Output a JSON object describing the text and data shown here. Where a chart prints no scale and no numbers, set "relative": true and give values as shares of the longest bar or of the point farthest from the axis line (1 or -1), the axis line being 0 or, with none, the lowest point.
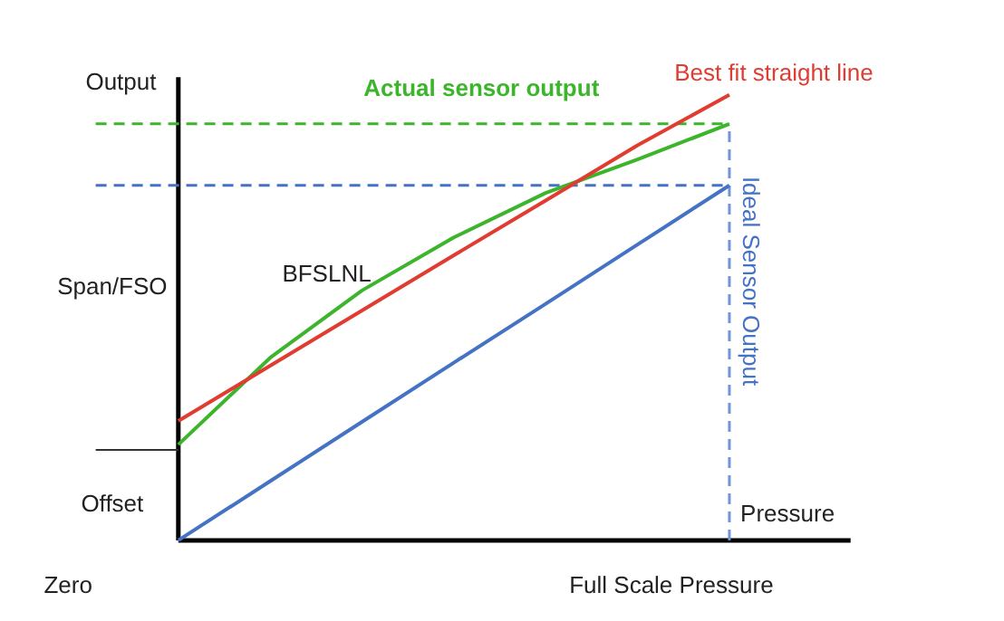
{
  "chart_data": {
    "type": "line",
    "relative": true,
    "ylabel": "Output",
    "xlabel": "Pressure",
    "categories": [
      null,
      null,
      null,
      null,
      null,
      null,
      null
    ],
    "series": [
      {
        "name": "Ideal Sensor Output",
        "color": "#4472c4",
        "values": [
          0,
          0.133,
          0.266,
          0.399,
          0.531,
          0.664,
          0.797
        ]
      },
      {
        "name": "Actual sensor output",
        "color": "#3cb52c",
        "values": [
          0.215,
          0.41,
          0.561,
          0.68,
          0.78,
          0.855,
          0.935
        ]
      },
      {
        "name": "Best fit straight line",
        "color": "#e03c31",
        "values": [
          0.268,
          0.392,
          0.516,
          0.64,
          0.763,
          0.887,
          1.0
        ]
      }
    ],
    "ref_lines": [
      {
        "axis": "y",
        "value": 0.935,
        "color": "#3cb52c",
        "line_style": "dashed"
      },
      {
        "axis": "y",
        "value": 0.797,
        "color": "#4472c4",
        "line_style": "dashed"
      },
      {
        "axis": "x",
        "label": "Full Scale Pressure",
        "color": "#6f95d9",
        "line_style": "dashed"
      },
      {
        "axis": "y",
        "value": 0.203,
        "color": "#333333",
        "line_style": "solid",
        "label": "Offset"
      }
    ],
    "annotations": [
      "BFSLNL",
      "Span/FSO",
      "Zero"
    ]
  }
}
